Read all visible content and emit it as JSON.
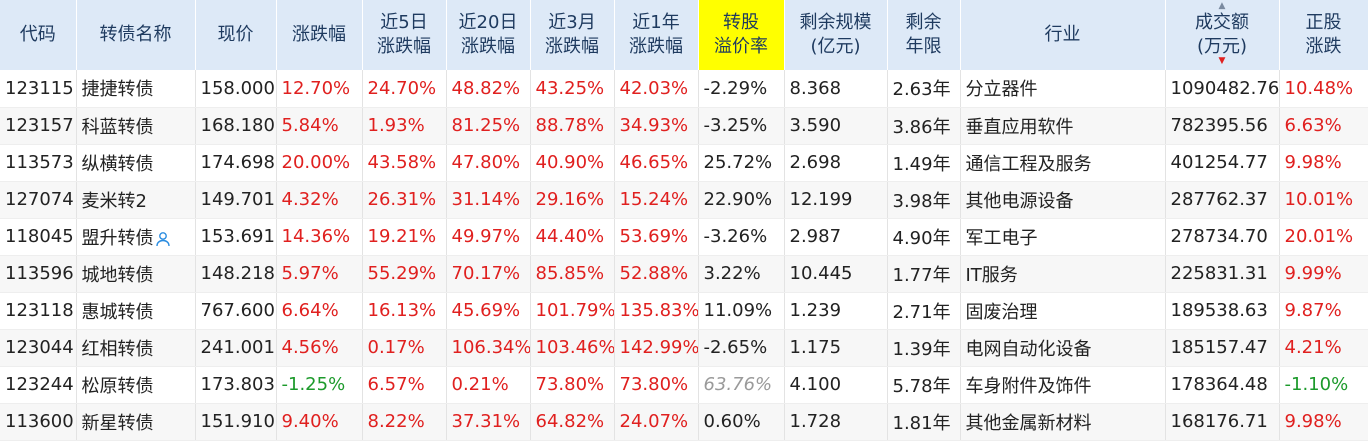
{
  "headers": {
    "code": "代码",
    "name": "转债名称",
    "price": "现价",
    "change": "涨跌幅",
    "chg5d_1": "近5日",
    "chg5d_2": "涨跌幅",
    "chg20d_1": "近20日",
    "chg20d_2": "涨跌幅",
    "chg3m_1": "近3月",
    "chg3m_2": "涨跌幅",
    "chg1y_1": "近1年",
    "chg1y_2": "涨跌幅",
    "premium_1": "转股",
    "premium_2": "溢价率",
    "scale_1": "剩余规模",
    "scale_2": "(亿元)",
    "years_1": "剩余",
    "years_2": "年限",
    "industry": "行业",
    "volume_1": "成交额",
    "volume_2": "(万元)",
    "stock_1": "正股",
    "stock_2": "涨跌"
  },
  "colors": {
    "up": "#e0201f",
    "down": "#1c9a2b",
    "header_bg": "#dde9f7",
    "highlight": "#ffff00",
    "code": "#1f5fa8"
  },
  "rows": [
    {
      "code": "123115",
      "name": "捷捷转债",
      "price": "158.000",
      "change": "12.70%",
      "chg5d": "24.70%",
      "chg20d": "48.82%",
      "chg3m": "43.25%",
      "chg1y": "42.03%",
      "premium": "-2.29%",
      "scale": "8.368",
      "years": "2.63年",
      "industry": "分立器件",
      "volume": "1090482.76",
      "stock": "10.48%"
    },
    {
      "code": "123157",
      "name": "科蓝转债",
      "price": "168.180",
      "change": "5.84%",
      "chg5d": "1.93%",
      "chg20d": "81.25%",
      "chg3m": "88.78%",
      "chg1y": "34.93%",
      "premium": "-3.25%",
      "scale": "3.590",
      "years": "3.86年",
      "industry": "垂直应用软件",
      "volume": "782395.56",
      "stock": "6.63%"
    },
    {
      "code": "113573",
      "name": "纵横转债",
      "price": "174.698",
      "change": "20.00%",
      "chg5d": "43.58%",
      "chg20d": "47.80%",
      "chg3m": "40.90%",
      "chg1y": "46.65%",
      "premium": "25.72%",
      "scale": "2.698",
      "years": "1.49年",
      "industry": "通信工程及服务",
      "volume": "401254.77",
      "stock": "9.98%"
    },
    {
      "code": "127074",
      "name": "麦米转2",
      "price": "149.701",
      "change": "4.32%",
      "chg5d": "26.31%",
      "chg20d": "31.14%",
      "chg3m": "29.16%",
      "chg1y": "15.24%",
      "premium": "22.90%",
      "scale": "12.199",
      "years": "3.98年",
      "industry": "其他电源设备",
      "volume": "287762.37",
      "stock": "10.01%"
    },
    {
      "code": "118045",
      "name": "盟升转债",
      "price": "153.691",
      "change": "14.36%",
      "chg5d": "19.21%",
      "chg20d": "49.97%",
      "chg3m": "44.40%",
      "chg1y": "53.69%",
      "premium": "-3.26%",
      "scale": "2.987",
      "years": "4.90年",
      "industry": "军工电子",
      "volume": "278734.70",
      "stock": "20.01%"
    },
    {
      "code": "113596",
      "name": "城地转债",
      "price": "148.218",
      "change": "5.97%",
      "chg5d": "55.29%",
      "chg20d": "70.17%",
      "chg3m": "85.85%",
      "chg1y": "52.88%",
      "premium": "3.22%",
      "scale": "10.445",
      "years": "1.77年",
      "industry": "IT服务",
      "volume": "225831.31",
      "stock": "9.99%"
    },
    {
      "code": "123118",
      "name": "惠城转债",
      "price": "767.600",
      "change": "6.64%",
      "chg5d": "16.13%",
      "chg20d": "45.69%",
      "chg3m": "101.79%",
      "chg1y": "135.83%",
      "premium": "11.09%",
      "scale": "1.239",
      "years": "2.71年",
      "industry": "固废治理",
      "volume": "189538.63",
      "stock": "9.87%"
    },
    {
      "code": "123044",
      "name": "红相转债",
      "price": "241.001",
      "change": "4.56%",
      "chg5d": "0.17%",
      "chg20d": "106.34%",
      "chg3m": "103.46%",
      "chg1y": "142.99%",
      "premium": "-2.65%",
      "scale": "1.175",
      "years": "1.39年",
      "industry": "电网自动化设备",
      "volume": "185157.47",
      "stock": "4.21%"
    },
    {
      "code": "123244",
      "name": "松原转债",
      "price": "173.803",
      "change": "-1.25%",
      "chg5d": "6.57%",
      "chg20d": "0.21%",
      "chg3m": "73.80%",
      "chg1y": "73.80%",
      "premium": "63.76%",
      "scale": "4.100",
      "years": "5.78年",
      "industry": "车身附件及饰件",
      "volume": "178364.48",
      "stock": "-1.10%"
    },
    {
      "code": "113600",
      "name": "新星转债",
      "price": "151.910",
      "change": "9.40%",
      "chg5d": "8.22%",
      "chg20d": "37.31%",
      "chg3m": "64.82%",
      "chg1y": "24.07%",
      "premium": "0.60%",
      "scale": "1.728",
      "years": "1.81年",
      "industry": "其他金属新材料",
      "volume": "168176.71",
      "stock": "9.98%"
    }
  ]
}
